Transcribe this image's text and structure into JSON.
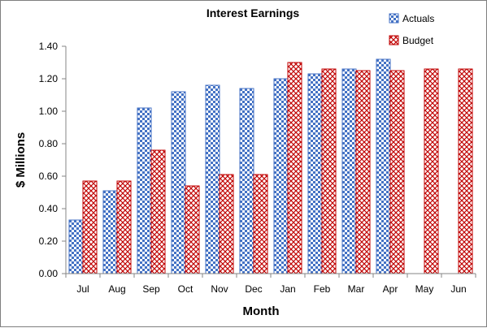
{
  "chart_data": {
    "type": "bar",
    "title": "Interest Earnings",
    "xlabel": "Month",
    "ylabel": "$ Millions",
    "categories": [
      "Jul",
      "Aug",
      "Sep",
      "Oct",
      "Nov",
      "Dec",
      "Jan",
      "Feb",
      "Mar",
      "Apr",
      "May",
      "Jun"
    ],
    "series": [
      {
        "name": "Actuals",
        "values": [
          0.33,
          0.51,
          1.02,
          1.12,
          1.16,
          1.14,
          1.2,
          1.23,
          1.26,
          1.32,
          null,
          null
        ]
      },
      {
        "name": "Budget",
        "values": [
          0.57,
          0.57,
          0.76,
          0.54,
          0.61,
          0.61,
          1.3,
          1.26,
          1.25,
          1.25,
          1.26,
          1.26
        ]
      }
    ],
    "ylim": [
      0,
      1.4
    ],
    "yticks": [
      "0.00",
      "0.20",
      "0.40",
      "0.60",
      "0.80",
      "1.00",
      "1.20",
      "1.40"
    ],
    "grid": false,
    "legend": "top-right",
    "colors": {
      "actuals": "#4472c4",
      "budget": "#c00000",
      "axis": "#868686"
    }
  }
}
